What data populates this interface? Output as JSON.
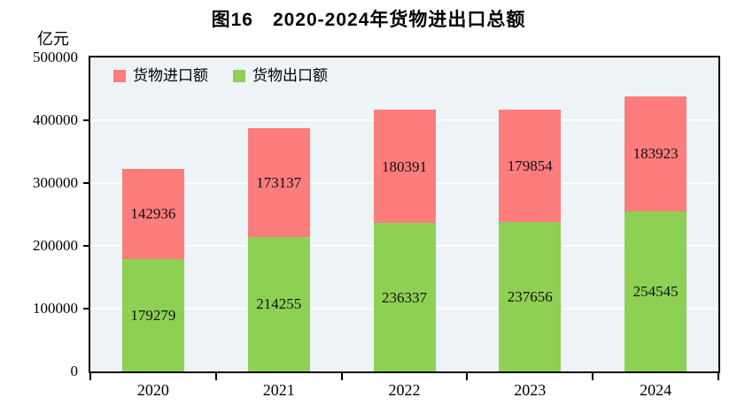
{
  "chart_data": {
    "type": "bar",
    "stacked": true,
    "title": "图16　2020-2024年货物进出口总额",
    "y_unit": "亿元",
    "categories": [
      "2020",
      "2021",
      "2022",
      "2023",
      "2024"
    ],
    "series": [
      {
        "name": "货物出口额",
        "role": "export",
        "color": "#8ed054",
        "values": [
          179279,
          214255,
          236337,
          237656,
          254545
        ]
      },
      {
        "name": "货物进口额",
        "role": "import",
        "color": "#fd7c7c",
        "values": [
          142936,
          173137,
          180391,
          179854,
          183923
        ]
      }
    ],
    "legend": [
      {
        "label": "货物进口额",
        "color": "#fd7c7c"
      },
      {
        "label": "货物出口额",
        "color": "#8ed054"
      }
    ],
    "legend_position": "top-left-inside",
    "ylim": [
      0,
      500000
    ],
    "yticks": [
      0,
      100000,
      200000,
      300000,
      400000,
      500000
    ],
    "grid": "horizontal-white",
    "value_labels": "inside-center",
    "colors": {
      "plot_background": "#eef3f7",
      "gridline": "#ffffff",
      "axis": "#000000",
      "text": "#000000"
    }
  }
}
